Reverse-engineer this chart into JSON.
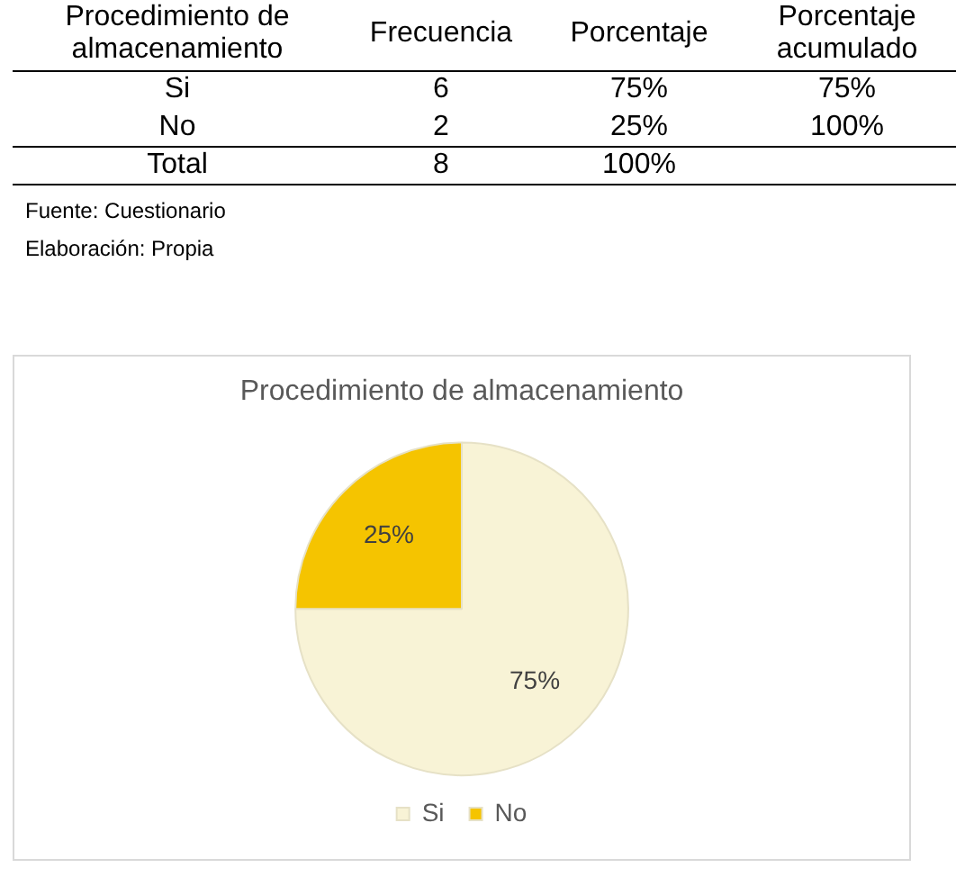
{
  "chart_data": [
    {
      "type": "other",
      "ylabel": "Procedimiento de almacenamiento",
      "categories": [
        "Frecuencia",
        "Porcentaje",
        "Porcentaje acumulado"
      ],
      "y_categories": [
        "Si",
        "No",
        "Total"
      ],
      "cell_labels": [
        [
          "6",
          "75%",
          "75%"
        ],
        [
          "2",
          "25%",
          "100%"
        ],
        [
          "8",
          "100%",
          null
        ]
      ],
      "annotations": [
        "Fuente: Cuestionario",
        "Elaboración: Propia"
      ]
    },
    {
      "type": "pie",
      "title": "Procedimiento de almacenamiento",
      "categories": [
        "Si",
        "No"
      ],
      "values": [
        75,
        25
      ],
      "colors": [
        "#f8f3d6",
        "#f5c400"
      ],
      "value_labels": [
        "75%",
        "25%"
      ],
      "legend": "bottom"
    }
  ]
}
